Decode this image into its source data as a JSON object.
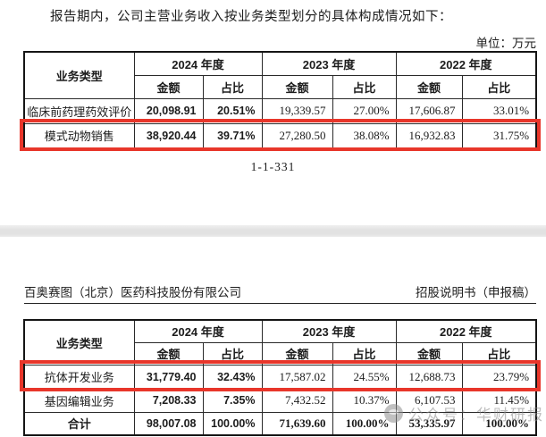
{
  "page1": {
    "intro_text": "报告期内，公司主营业务收入按业务类型划分的具体构成情况如下：",
    "unit_label": "单位：万元",
    "page_number": "1-1-331"
  },
  "page2": {
    "company_name": "百奥赛图（北京）医药科技股份有限公司",
    "doc_type": "招股说明书（申报稿）"
  },
  "watermark": {
    "text": "公众号：华财研报"
  },
  "headers": {
    "business_type": "业务类型",
    "year_2024": "2024 年度",
    "year_2023": "2023 年度",
    "year_2022": "2022 年度",
    "amount": "金额",
    "ratio": "占比"
  },
  "table1": {
    "rows": [
      {
        "label": "临床前药理药效评价",
        "highlighted": "false",
        "cells": [
          "20,098.91",
          "20.51%",
          "19,339.57",
          "27.00%",
          "17,606.87",
          "33.01%"
        ]
      },
      {
        "label": "模式动物销售",
        "highlighted": "true",
        "cells": [
          "38,920.44",
          "39.71%",
          "27,280.50",
          "38.08%",
          "16,932.83",
          "31.75%"
        ]
      }
    ]
  },
  "table2": {
    "rows": [
      {
        "label": "抗体开发业务",
        "highlighted": "true",
        "cells": [
          "31,779.40",
          "32.43%",
          "17,587.02",
          "24.55%",
          "12,688.73",
          "23.79%"
        ]
      },
      {
        "label": "基因编辑业务",
        "highlighted": "false",
        "cells": [
          "7,208.33",
          "7.35%",
          "7,432.52",
          "10.37%",
          "6,107.53",
          "11.45%"
        ]
      },
      {
        "label": "合计",
        "highlighted": "false",
        "is_total": "true",
        "cells": [
          "98,007.08",
          "100.00%",
          "71,639.60",
          "100.00%",
          "53,335.97",
          "100.00%"
        ]
      }
    ]
  },
  "colors": {
    "highlight_border": "#e8362a",
    "separator_gray": "#e2e2e2",
    "watermark_gray": "#8a8a8a"
  }
}
